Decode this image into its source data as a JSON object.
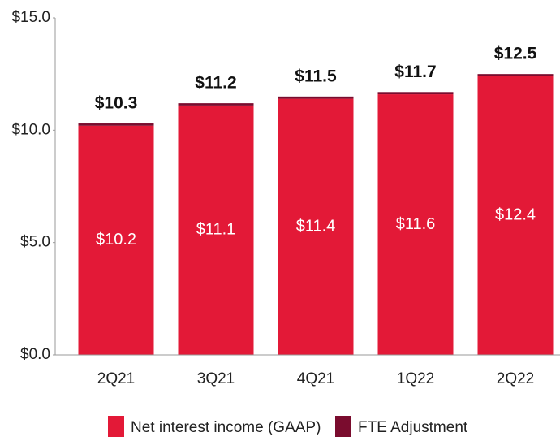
{
  "chart_data": {
    "type": "stacked_bar",
    "categories": [
      "2Q21",
      "3Q21",
      "4Q21",
      "1Q22",
      "2Q22"
    ],
    "series": [
      {
        "name": "Net interest income (GAAP)",
        "color": "#e31937",
        "values": [
          10.2,
          11.1,
          11.4,
          11.6,
          12.4
        ],
        "value_labels": [
          "$10.2",
          "$11.1",
          "$11.4",
          "$11.6",
          "$12.4"
        ]
      },
      {
        "name": "FTE Adjustment",
        "color": "#7a0c2e",
        "values": [
          0.1,
          0.1,
          0.1,
          0.1,
          0.1
        ]
      }
    ],
    "totals": [
      10.3,
      11.2,
      11.5,
      11.7,
      12.5
    ],
    "total_labels": [
      "$10.3",
      "$11.2",
      "$11.5",
      "$11.7",
      "$12.5"
    ],
    "ylim": [
      0,
      15
    ],
    "yticks": [
      {
        "value": 0,
        "label": "$0.0"
      },
      {
        "value": 5,
        "label": "$5.0"
      },
      {
        "value": 10,
        "label": "$10.0"
      },
      {
        "value": 15,
        "label": "$15.0"
      }
    ]
  }
}
